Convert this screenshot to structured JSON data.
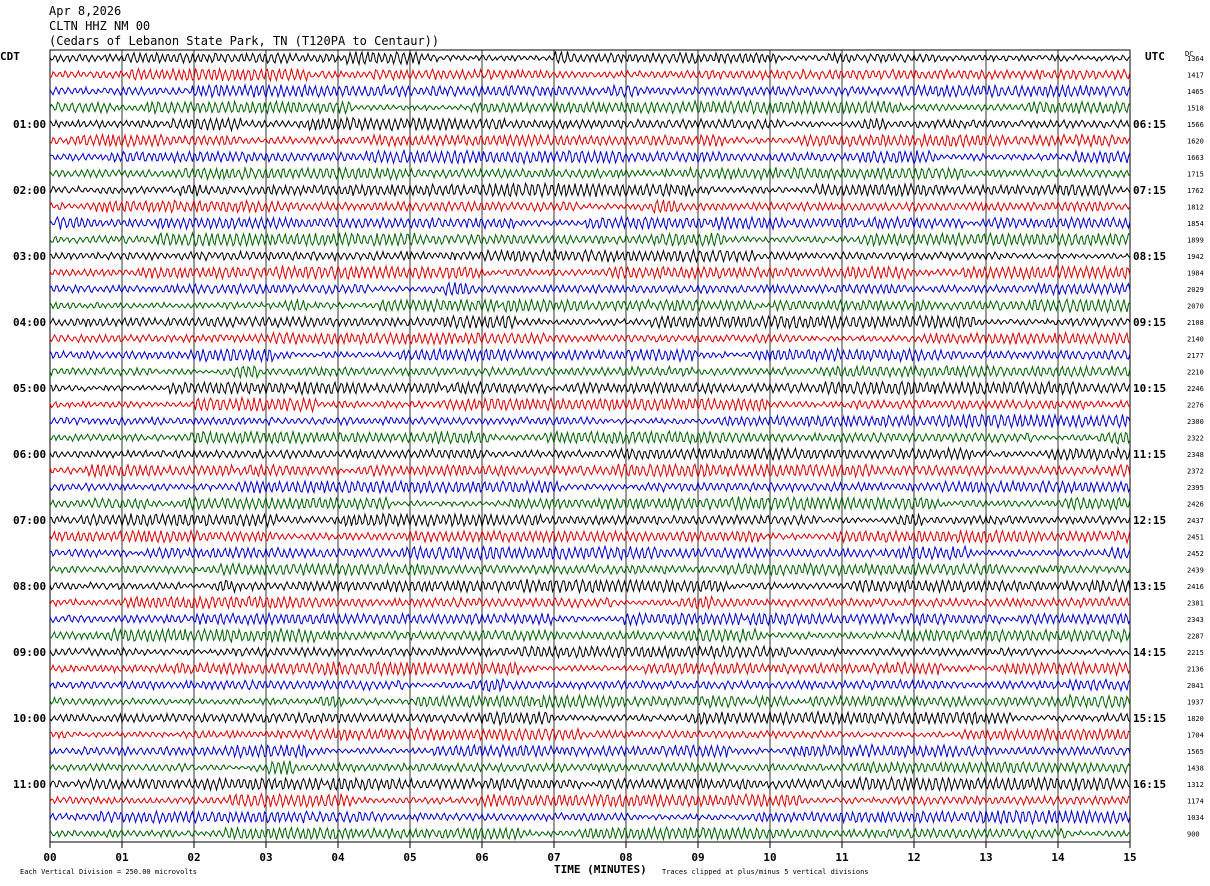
{
  "header": {
    "date": "Apr 8,2026",
    "station": "CLTN HHZ NM 00",
    "location": "(Cedars of Lebanon State Park, TN (T120PA to Centaur))"
  },
  "axes": {
    "left_zone": "CDT",
    "right_zone": "UTC",
    "right_col_header": "DC",
    "xlabel": "TIME (MINUTES)",
    "footer_left": "Each Vertical Division =  250.00 microvolts",
    "footer_right": "Traces clipped at plus/minus 5 vertical divisions"
  },
  "colors": [
    "#000000",
    "#e00000",
    "#0000d0",
    "#006400"
  ],
  "chart_data": {
    "type": "line",
    "title": "",
    "x_ticks": [
      "00",
      "01",
      "02",
      "03",
      "04",
      "05",
      "06",
      "07",
      "08",
      "09",
      "10",
      "11",
      "12",
      "13",
      "14",
      "15"
    ],
    "xlim": [
      0,
      15
    ],
    "left_hour_labels": [
      "01:00",
      "02:00",
      "03:00",
      "04:00",
      "05:00",
      "06:00",
      "07:00",
      "08:00",
      "09:00",
      "10:00",
      "11:00"
    ],
    "right_hour_labels": [
      "06:15",
      "07:15",
      "08:15",
      "09:15",
      "10:15",
      "11:15",
      "12:15",
      "13:15",
      "14:15",
      "15:15",
      "16:15"
    ],
    "dc_offsets": [
      "1364",
      "1417",
      "1465",
      "1518",
      "1566",
      "1620",
      "1663",
      "1715",
      "1762",
      "1812",
      "1854",
      "1899",
      "1942",
      "1984",
      "2029",
      "2070",
      "2108",
      "2140",
      "2177",
      "2210",
      "2246",
      "2276",
      "2300",
      "2322",
      "2348",
      "2372",
      "2395",
      "2426",
      "2437",
      "2451",
      "2452",
      "2439",
      "2416",
      "2381",
      "2343",
      "2287",
      "2215",
      "2136",
      "2041",
      "1937",
      "1820",
      "1704",
      "1565",
      "1438",
      "1312",
      "1174",
      "1034",
      "900"
    ],
    "traces_per_hour": 4,
    "grid": true
  }
}
